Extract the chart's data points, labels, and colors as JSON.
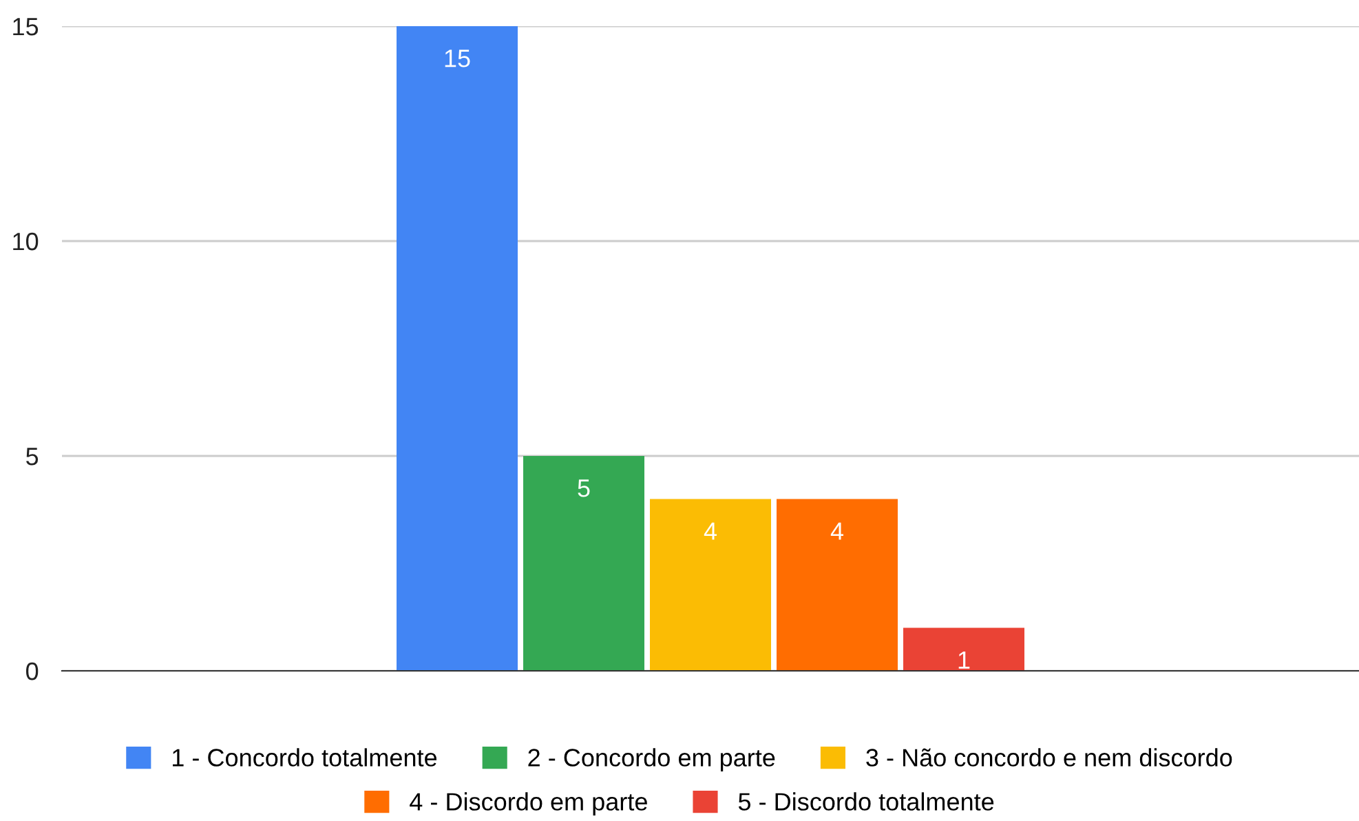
{
  "chart_data": {
    "type": "bar",
    "categories": [
      null
    ],
    "series": [
      {
        "name": "1 - Concordo totalmente",
        "color": "#4285f4",
        "values": [
          15
        ]
      },
      {
        "name": "2 - Concordo em parte",
        "color": "#34a853",
        "values": [
          5
        ]
      },
      {
        "name": "3 - Não concordo e nem discordo",
        "color": "#fbbc04",
        "values": [
          4
        ]
      },
      {
        "name": "4 - Discordo em parte",
        "color": "#ff6d01",
        "values": [
          4
        ]
      },
      {
        "name": "5 - Discordo totalmente",
        "color": "#ea4335",
        "values": [
          1
        ]
      }
    ],
    "ylim": [
      0,
      15
    ],
    "yticks": [
      0,
      5,
      10,
      15
    ],
    "grid": "y",
    "legend": "bottom",
    "data_labels": true
  }
}
